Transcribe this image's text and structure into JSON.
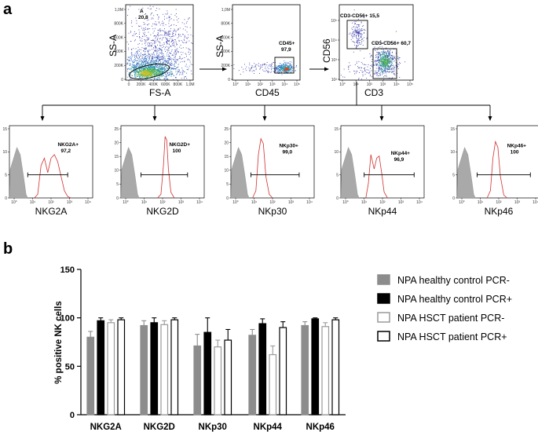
{
  "panel_a": {
    "label": "a",
    "scatter1": {
      "xlabel": "FS-A",
      "ylabel": "SS-A",
      "gate_name": "A",
      "gate_value": "20,8",
      "xticks": [
        "0",
        "200K",
        "400K",
        "600K",
        "800K",
        "1,0M"
      ],
      "yticks": [
        "0",
        "200K",
        "400K",
        "600K",
        "800K",
        "1,0M"
      ]
    },
    "scatter2": {
      "xlabel": "CD45",
      "ylabel": "SS-A",
      "gate_name": "CD45+",
      "gate_value": "97,9",
      "xticks": [
        "10°",
        "10¹",
        "10²",
        "10³",
        "10⁴",
        "10⁵"
      ],
      "yticks": [
        "0",
        "200K",
        "400K",
        "600K",
        "800K",
        "1,0M"
      ]
    },
    "scatter3": {
      "xlabel": "CD3",
      "ylabel": "CD56",
      "gate1": "CD3-CD56+ 15,5",
      "gate2": "CD3-CD56+ 60,7",
      "xticks": [
        "10°",
        "10¹",
        "10²",
        "10³",
        "10⁴",
        "10⁵"
      ],
      "yticks": [
        "10²",
        "10³",
        "10⁴",
        "10⁵"
      ]
    },
    "histograms": [
      {
        "xlabel": "NKG2A",
        "gate_name": "NKG2A+",
        "gate_value": "97,2",
        "ymax": 15
      },
      {
        "xlabel": "NKG2D",
        "gate_name": "NKG2D+",
        "gate_value": "100",
        "ymax": 25
      },
      {
        "xlabel": "NKp30",
        "gate_name": "NKp30+",
        "gate_value": "99,0",
        "ymax": 25
      },
      {
        "xlabel": "NKp44",
        "gate_name": "NKp44+",
        "gate_value": "96,9",
        "ymax": 15
      },
      {
        "xlabel": "NKp46",
        "gate_name": "NKp46+",
        "gate_value": "100",
        "ymax": 15
      }
    ],
    "hist_yticks_15": [
      "0",
      "5",
      "10",
      "15"
    ],
    "hist_yticks_25": [
      "0",
      "5",
      "10",
      "15",
      "20",
      "25"
    ],
    "hist_xticks": [
      "10°",
      "10¹",
      "10²",
      "10³",
      "10⁴"
    ]
  },
  "panel_b": {
    "label": "b",
    "colors": {
      "gray": "#8c8c8c",
      "black": "#000000",
      "white": "#ffffff"
    }
  },
  "chart_data": {
    "type": "bar",
    "title": "",
    "xlabel": "",
    "ylabel": "% positive NK cells",
    "ylim": [
      0,
      150
    ],
    "yticks": [
      0,
      50,
      100,
      150
    ],
    "categories": [
      "NKG2A",
      "NKG2D",
      "NKp30",
      "NKp44",
      "NKp46"
    ],
    "series": [
      {
        "name": "NPA healthy control PCR-",
        "style": "gray",
        "values": [
          80,
          92,
          71,
          82,
          92
        ],
        "errors": [
          6,
          5,
          12,
          6,
          4
        ]
      },
      {
        "name": "NPA healthy control PCR+",
        "style": "black",
        "values": [
          97,
          95,
          85,
          94,
          99
        ],
        "errors": [
          3,
          5,
          15,
          5,
          1
        ]
      },
      {
        "name": "NPA HSCT patient PCR-",
        "style": "open-gray",
        "values": [
          95,
          93,
          70,
          62,
          91
        ],
        "errors": [
          3,
          4,
          7,
          9,
          4
        ]
      },
      {
        "name": "NPA HSCT patient PCR+",
        "style": "open-black",
        "values": [
          98,
          98,
          77,
          90,
          98
        ],
        "errors": [
          2,
          2,
          11,
          6,
          2
        ]
      }
    ],
    "legend_position": "right"
  }
}
